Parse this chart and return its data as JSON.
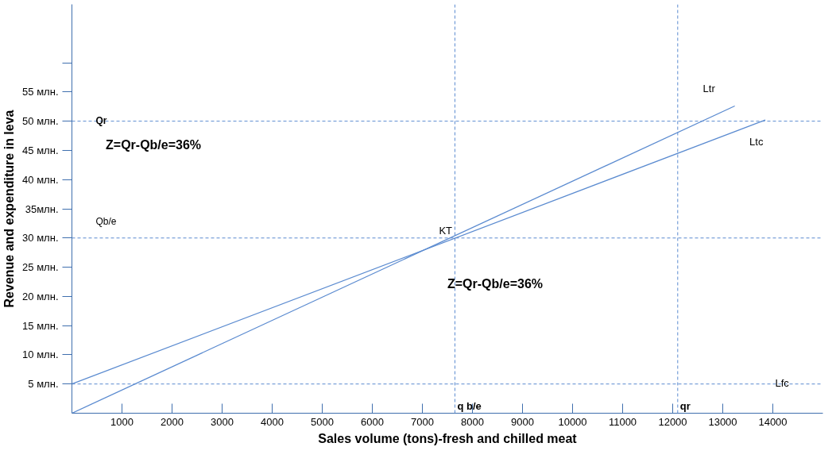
{
  "chart_data": {
    "type": "line",
    "xlabel": "Sales volume (tons)-fresh and chilled meat",
    "ylabel": "Revenue and expenditure in leva",
    "xlim": [
      0,
      15000
    ],
    "ylim": [
      0,
      70
    ],
    "xticks": [
      1000,
      2000,
      3000,
      4000,
      5000,
      6000,
      7000,
      8000,
      9000,
      10000,
      11000,
      12000,
      13000,
      14000
    ],
    "yticks": [
      {
        "value": 5,
        "label": "5 млн."
      },
      {
        "value": 10,
        "label": "10 млн."
      },
      {
        "value": 15,
        "label": "15 млн."
      },
      {
        "value": 20,
        "label": "20 млн."
      },
      {
        "value": 25,
        "label": "25 млн."
      },
      {
        "value": 30,
        "label": "30 млн."
      },
      {
        "value": 35,
        "label": "35млн."
      },
      {
        "value": 40,
        "label": "40 млн."
      },
      {
        "value": 45,
        "label": "45 млн."
      },
      {
        "value": 50,
        "label": "50 млн."
      },
      {
        "value": 55,
        "label": "55 млн."
      },
      {
        "value": 60,
        "label": null
      }
    ],
    "grid": false,
    "marker": "none",
    "line_style": "solid",
    "series": [
      {
        "name": "Ltr",
        "color": "#5b8bd0",
        "x": [
          0,
          13240
        ],
        "values": [
          0,
          52.6
        ]
      },
      {
        "name": "Ltc",
        "color": "#5b8bd0",
        "x": [
          0,
          13850
        ],
        "values": [
          5,
          50.2
        ]
      }
    ],
    "ref_lines": [
      {
        "axis": "y",
        "value": 50,
        "label": "Qr",
        "color": "#5b8bd0",
        "line_style": "dashed"
      },
      {
        "axis": "y",
        "value": 30,
        "label": "Qb/e",
        "color": "#5b8bd0",
        "line_style": "dashed"
      },
      {
        "axis": "y",
        "value": 5,
        "label": "Lfc",
        "color": "#5b8bd0",
        "line_style": "dashed"
      },
      {
        "axis": "x",
        "value": 7650,
        "label": "q b/e",
        "color": "#5b8bd0",
        "line_style": "dashed"
      },
      {
        "axis": "x",
        "value": 12100,
        "label": "qr",
        "color": "#5b8bd0",
        "line_style": "dashed"
      }
    ],
    "annotations": [
      "Z=Qr-Qb/e=36%",
      "Z=Qr-Qb/e=36%",
      {
        "text": "KT",
        "x": 7650,
        "y": 30
      }
    ]
  }
}
